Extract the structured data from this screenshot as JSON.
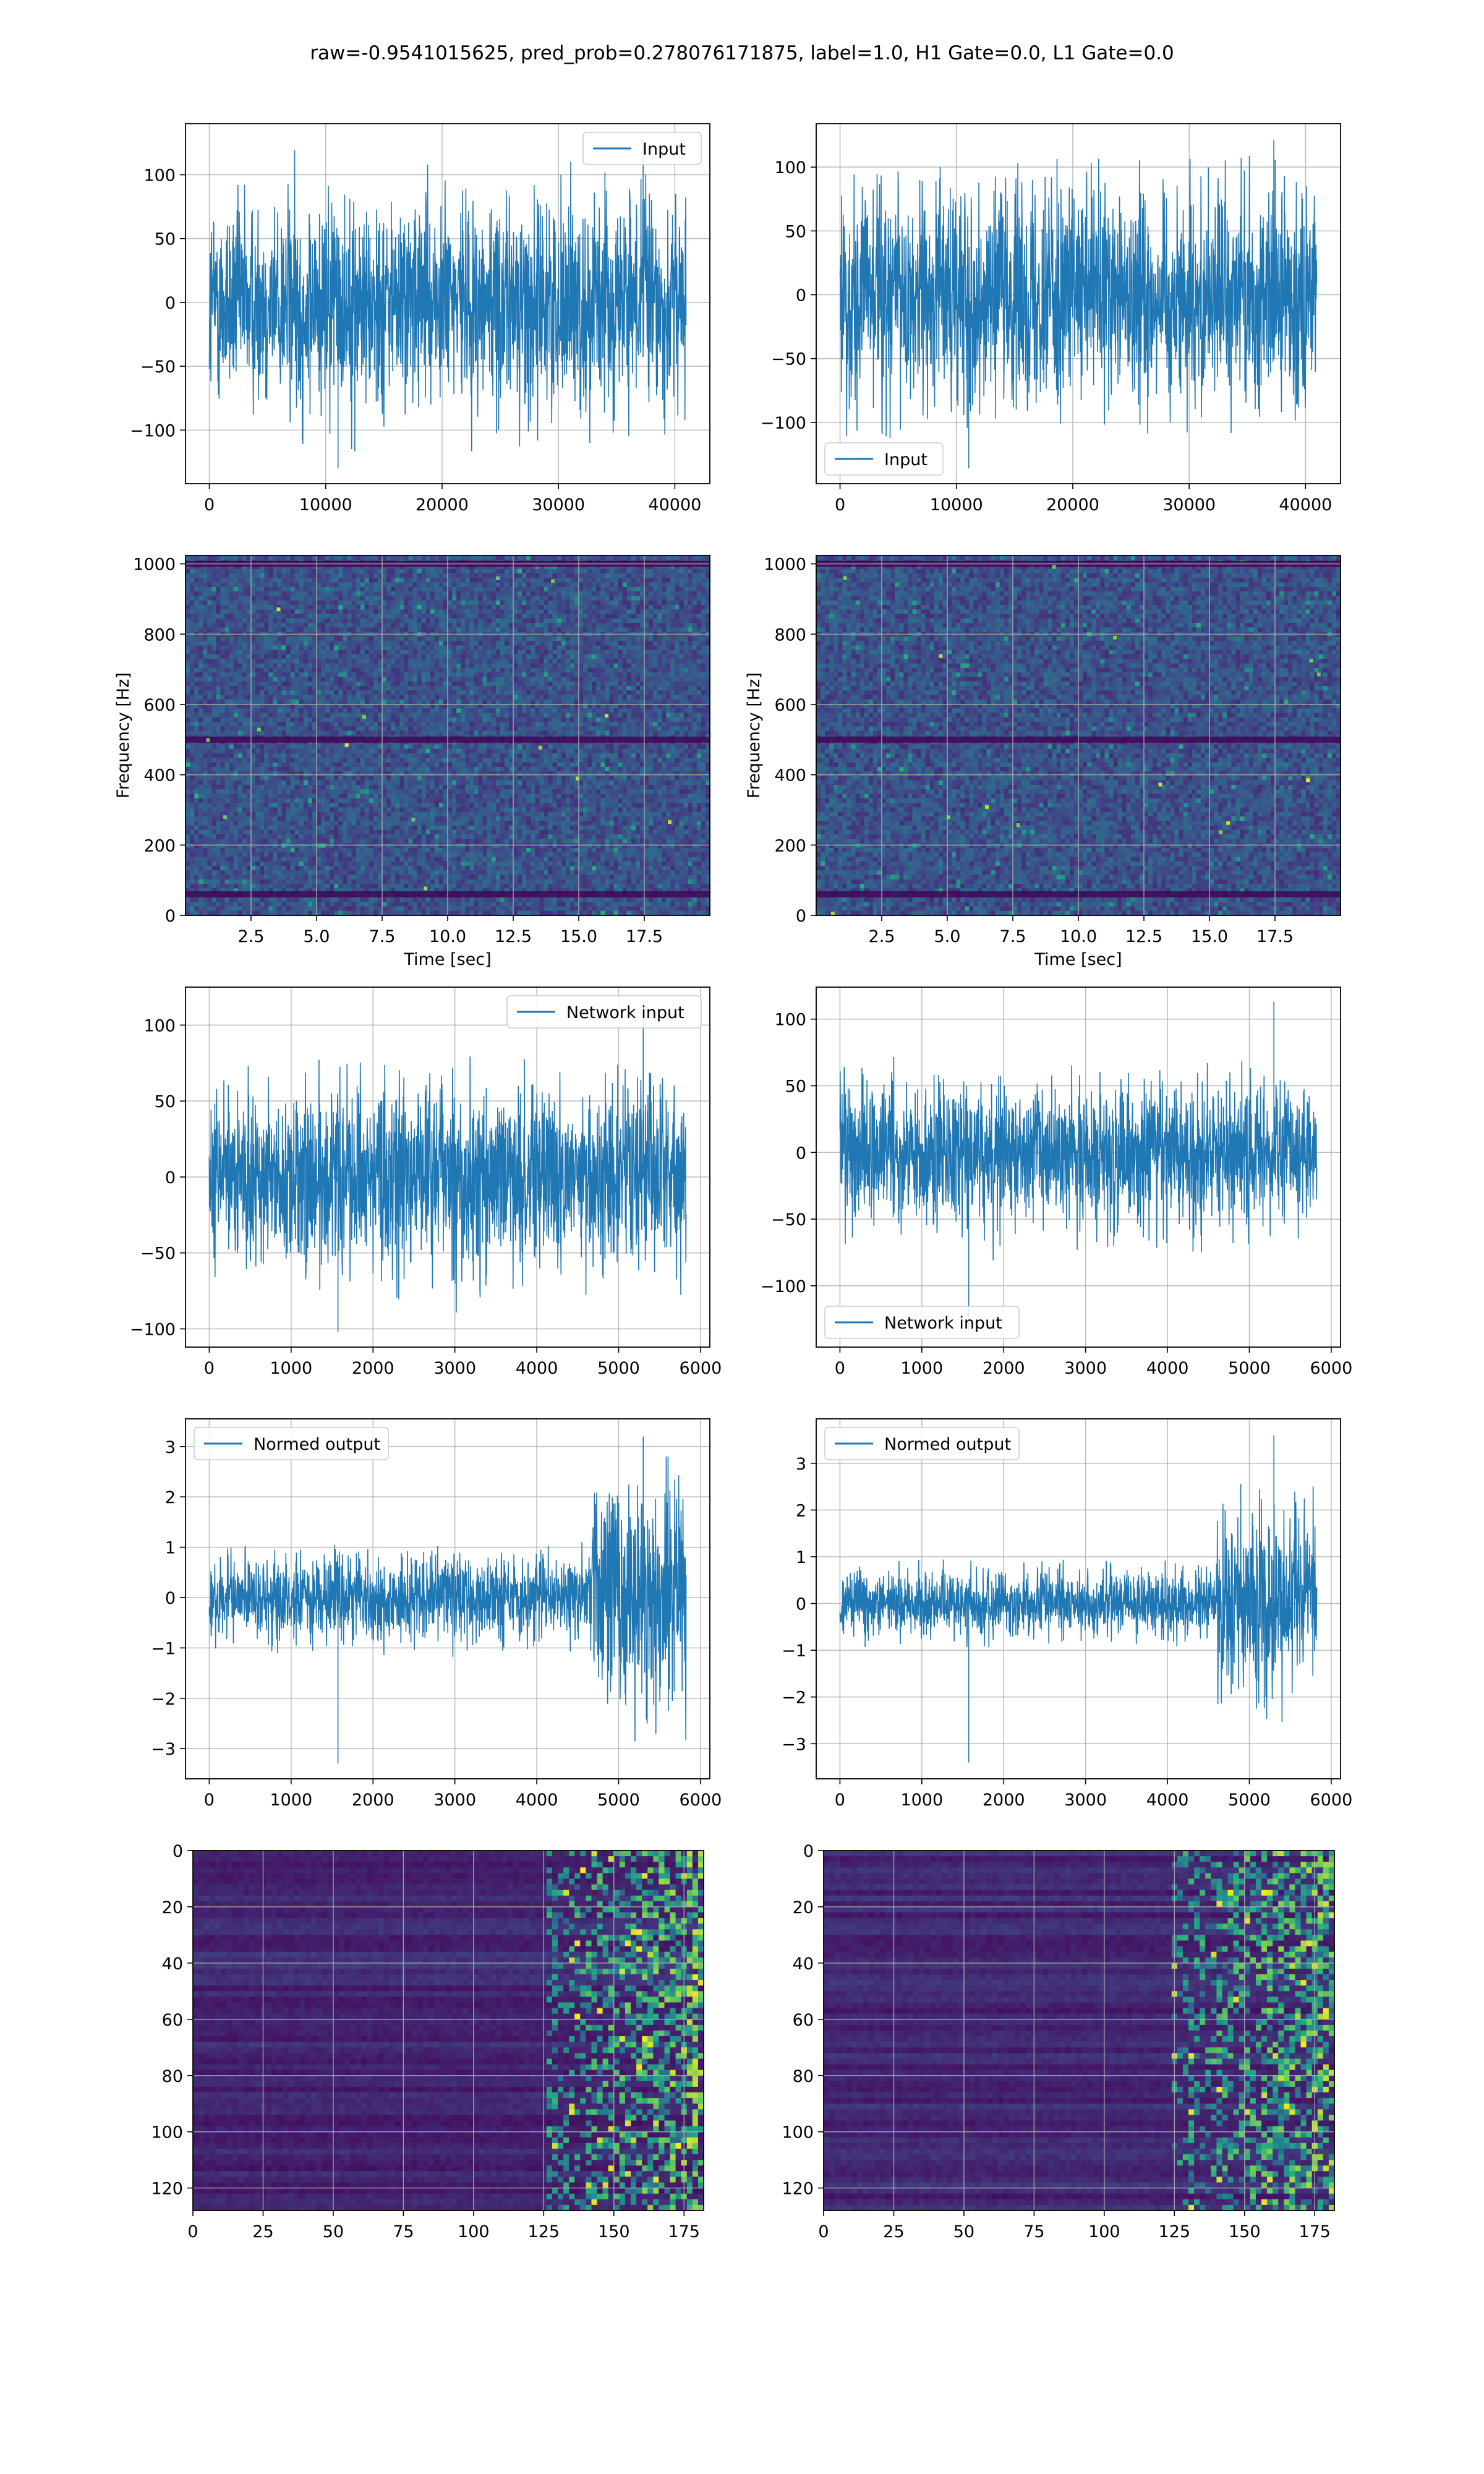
{
  "figure": {
    "suptitle": "raw=-0.9541015625, pred_prob=0.278076171875, label=1.0, H1 Gate=0.0, L1 Gate=0.0"
  },
  "colors": {
    "line": "#1f77b4",
    "grid": "#b0b0b0",
    "viridis_dark": "#440154",
    "viridis_mid": "#2a788e",
    "viridis_teal": "#22a884",
    "viridis_yellow": "#fde725"
  },
  "chart_data": [
    {
      "id": "input-h1",
      "type": "line",
      "title": "",
      "xlabel": "",
      "ylabel": "",
      "series": [
        {
          "name": "Input",
          "x_range": [
            0,
            40960
          ],
          "band": [
            -70,
            70
          ],
          "peaks": [
            -130,
            127
          ]
        }
      ],
      "xlim": [
        -2048,
        43008
      ],
      "ylim": [
        -142,
        140
      ],
      "xticks": [
        0,
        10000,
        20000,
        30000,
        40000
      ],
      "yticks": [
        -100,
        -50,
        0,
        50,
        100
      ],
      "grid": true,
      "legend": "upper right"
    },
    {
      "id": "input-l1",
      "type": "line",
      "title": "",
      "xlabel": "",
      "ylabel": "",
      "series": [
        {
          "name": "Input",
          "x_range": [
            0,
            40960
          ],
          "band": [
            -70,
            70
          ],
          "peaks": [
            -136,
            121
          ]
        }
      ],
      "xlim": [
        -2048,
        43008
      ],
      "ylim": [
        -148,
        134
      ],
      "xticks": [
        0,
        10000,
        20000,
        30000,
        40000
      ],
      "yticks": [
        -100,
        -50,
        0,
        50,
        100
      ],
      "grid": true,
      "legend": "lower left"
    },
    {
      "id": "spectrogram-h1",
      "type": "heatmap",
      "title": "",
      "xlabel": "Time [sec]",
      "ylabel": "Frequency [Hz]",
      "xlim": [
        0,
        20
      ],
      "ylim": [
        0,
        1024
      ],
      "xticks": [
        2.5,
        5.0,
        7.5,
        10.0,
        12.5,
        15.0,
        17.5
      ],
      "yticks": [
        0,
        200,
        400,
        600,
        800,
        1000
      ],
      "dark_bands_hz": [
        1000,
        500,
        60
      ],
      "grid": true,
      "colormap": "viridis"
    },
    {
      "id": "spectrogram-l1",
      "type": "heatmap",
      "title": "",
      "xlabel": "Time [sec]",
      "ylabel": "Frequency [Hz]",
      "xlim": [
        0,
        20
      ],
      "ylim": [
        0,
        1024
      ],
      "xticks": [
        2.5,
        5.0,
        7.5,
        10.0,
        12.5,
        15.0,
        17.5
      ],
      "yticks": [
        0,
        200,
        400,
        600,
        800,
        1000
      ],
      "dark_bands_hz": [
        1000,
        500,
        60
      ],
      "grid": true,
      "colormap": "viridis"
    },
    {
      "id": "network-input-h1",
      "type": "line",
      "title": "",
      "xlabel": "",
      "ylabel": "",
      "series": [
        {
          "name": "Network input",
          "x_range": [
            0,
            5824
          ],
          "band": [
            -50,
            50
          ],
          "peaks": [
            -102,
            115
          ]
        }
      ],
      "xlim": [
        -290,
        6114
      ],
      "ylim": [
        -112,
        125
      ],
      "xticks": [
        0,
        1000,
        2000,
        3000,
        4000,
        5000,
        6000
      ],
      "yticks": [
        -100,
        -50,
        0,
        50,
        100
      ],
      "grid": true,
      "legend": "upper right"
    },
    {
      "id": "network-input-l1",
      "type": "line",
      "title": "",
      "xlabel": "",
      "ylabel": "",
      "series": [
        {
          "name": "Network input",
          "x_range": [
            0,
            5824
          ],
          "band": [
            -45,
            45
          ],
          "peaks": [
            -133,
            113
          ]
        }
      ],
      "xlim": [
        -290,
        6114
      ],
      "ylim": [
        -146,
        124
      ],
      "xticks": [
        0,
        1000,
        2000,
        3000,
        4000,
        5000,
        6000
      ],
      "yticks": [
        -100,
        -50,
        0,
        50,
        100
      ],
      "grid": true,
      "legend": "lower left"
    },
    {
      "id": "normed-output-h1",
      "type": "line",
      "title": "",
      "xlabel": "",
      "ylabel": "",
      "series": [
        {
          "name": "Normed output",
          "x_range": [
            0,
            5824
          ],
          "band": [
            -0.7,
            0.7
          ],
          "band_late": [
            -1.8,
            2.0
          ],
          "late_start": 4650,
          "peaks": [
            -3.3,
            3.2
          ]
        }
      ],
      "xlim": [
        -290,
        6114
      ],
      "ylim": [
        -3.6,
        3.55
      ],
      "xticks": [
        0,
        1000,
        2000,
        3000,
        4000,
        5000,
        6000
      ],
      "yticks": [
        -3,
        -2,
        -1,
        0,
        1,
        2,
        3
      ],
      "grid": true,
      "legend": "upper left"
    },
    {
      "id": "normed-output-l1",
      "type": "line",
      "title": "",
      "xlabel": "",
      "ylabel": "",
      "series": [
        {
          "name": "Normed output",
          "x_range": [
            0,
            5824
          ],
          "band": [
            -0.6,
            0.6
          ],
          "band_late": [
            -1.6,
            1.6
          ],
          "late_start": 4600,
          "peaks": [
            -3.4,
            3.6
          ]
        }
      ],
      "xlim": [
        -290,
        6114
      ],
      "ylim": [
        -3.75,
        3.95
      ],
      "xticks": [
        0,
        1000,
        2000,
        3000,
        4000,
        5000,
        6000
      ],
      "yticks": [
        -3,
        -2,
        -1,
        0,
        1,
        2,
        3
      ],
      "grid": true,
      "legend": "upper left"
    },
    {
      "id": "features-h1",
      "type": "heatmap",
      "title": "",
      "xlabel": "",
      "ylabel": "",
      "shape": [
        128,
        182
      ],
      "bright_from_col": 125,
      "xlim": [
        0,
        182
      ],
      "ylim": [
        128,
        0
      ],
      "xticks": [
        0,
        25,
        50,
        75,
        100,
        125,
        150,
        175
      ],
      "yticks": [
        0,
        20,
        40,
        60,
        80,
        100,
        120
      ],
      "grid": true,
      "colormap": "viridis"
    },
    {
      "id": "features-l1",
      "type": "heatmap",
      "title": "",
      "xlabel": "",
      "ylabel": "",
      "shape": [
        128,
        182
      ],
      "bright_from_col": 123,
      "xlim": [
        0,
        182
      ],
      "ylim": [
        128,
        0
      ],
      "xticks": [
        0,
        25,
        50,
        75,
        100,
        125,
        150,
        175
      ],
      "yticks": [
        0,
        20,
        40,
        60,
        80,
        100,
        120
      ],
      "grid": true,
      "colormap": "viridis"
    }
  ]
}
